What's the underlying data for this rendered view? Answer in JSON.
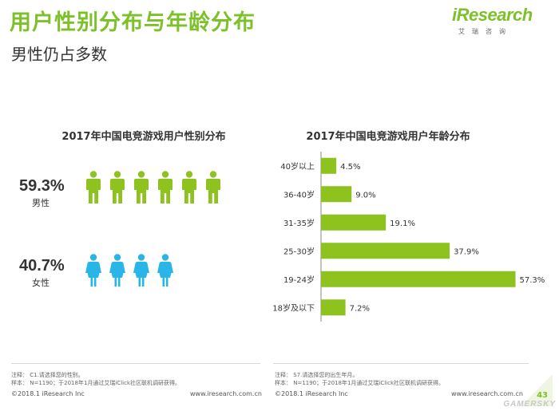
{
  "header": {
    "title": "用户性别分布与年龄分布",
    "subtitle": "男性仍占多数"
  },
  "logo": {
    "main": "iResearch",
    "sub": "艾瑞咨询"
  },
  "colors": {
    "accent": "#7dc12a",
    "male": "#8dc21f",
    "female": "#29b6e6"
  },
  "chart_data": [
    {
      "type": "pictogram",
      "title": "2017年中国电竞游戏用户性别分布",
      "groups": [
        {
          "label": "男性",
          "value": 59.3,
          "display": "59.3%",
          "icons": 6
        },
        {
          "label": "女性",
          "value": 40.7,
          "display": "40.7%",
          "icons": 4
        }
      ]
    },
    {
      "type": "bar",
      "orientation": "horizontal",
      "title": "2017年中国电竞游戏用户年龄分布",
      "categories": [
        "40岁以上",
        "36-40岁",
        "31-35岁",
        "25-30岁",
        "19-24岁",
        "18岁及以下"
      ],
      "values": [
        4.5,
        9.0,
        19.1,
        37.9,
        57.3,
        7.2
      ],
      "labels": [
        "4.5%",
        "9.0%",
        "19.1%",
        "37.9%",
        "57.3%",
        "7.2%"
      ],
      "xlim": [
        0,
        60
      ]
    }
  ],
  "footer": {
    "left": {
      "note1": "注释：  C1.请选择您的性别。",
      "note2": "样本：  N=1190；于2018年1月通过艾瑞iClick社区联机调研获得。",
      "copyright": "©2018.1 iResearch Inc",
      "url": "www.iresearch.com.cn"
    },
    "right": {
      "note1": "注释：  S7.请选择您的出生年月。",
      "note2": "样本：  N=1190；于2018年1月通过艾瑞iClick社区联机调研获得。",
      "copyright": "©2018.1 iResearch Inc",
      "url": "www.iresearch.com.cn"
    },
    "page": "43",
    "watermark": "GAMERSKY"
  }
}
